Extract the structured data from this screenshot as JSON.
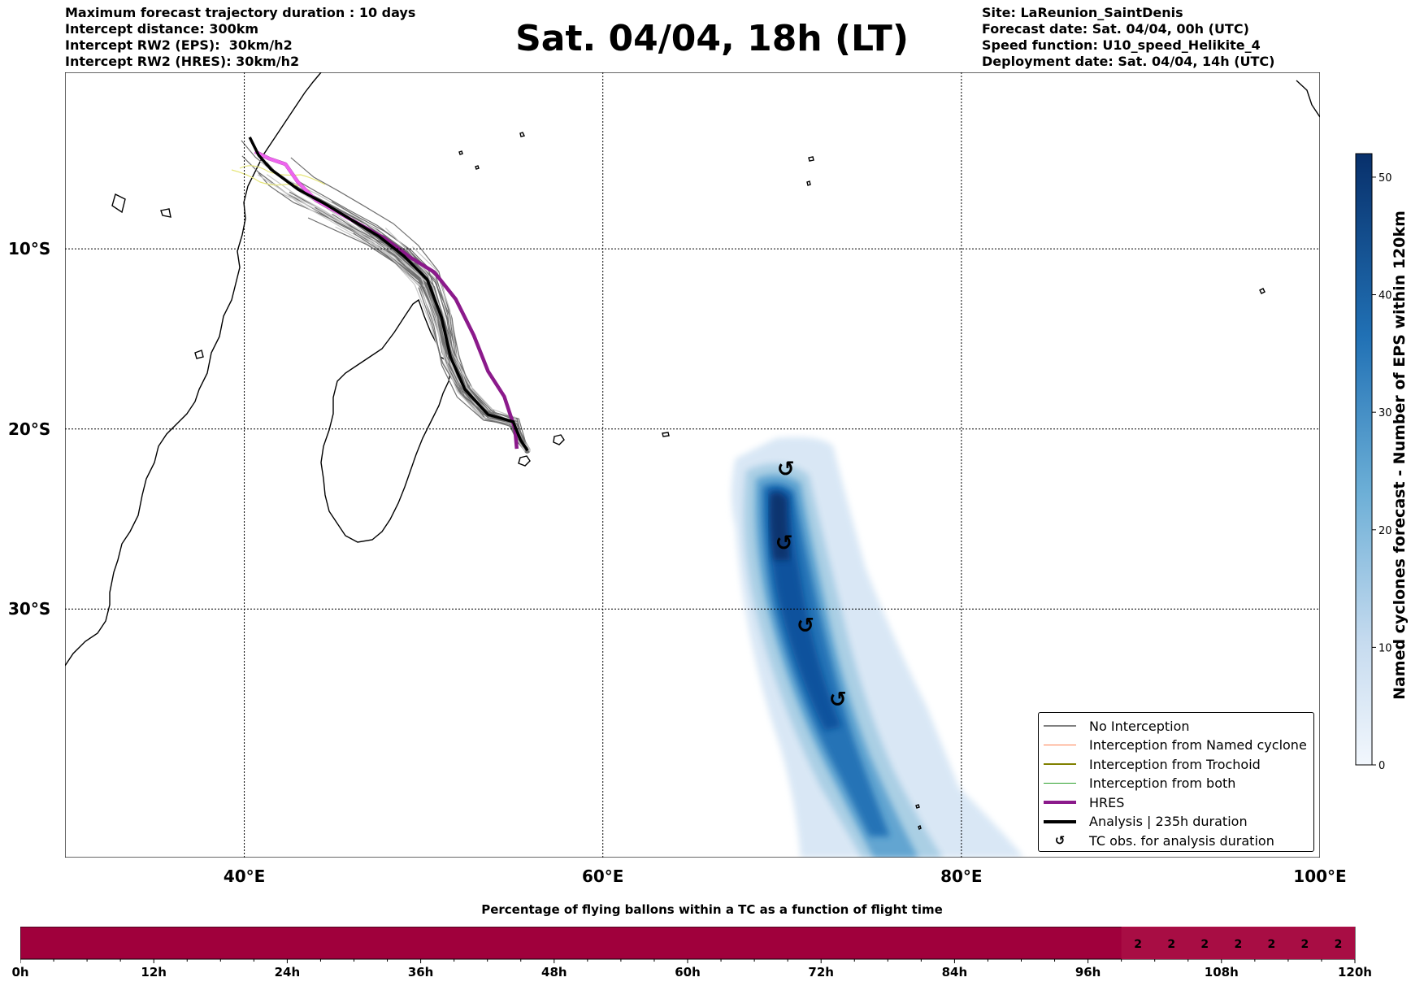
{
  "header": {
    "left_lines": [
      "Maximum forecast trajectory duration : 10 days",
      "Intercept distance: 300km",
      "Intercept RW2 (EPS):  30km/h2",
      "Intercept RW2 (HRES): 30km/h2"
    ],
    "title": "Sat. 04/04, 18h (LT)",
    "right_lines": [
      "Site: LaReunion_SaintDenis",
      "Forecast date: Sat. 04/04, 00h (UTC)",
      "Speed function: U10_speed_Helikite_4",
      "Deployment date: Sat. 04/04, 14h (UTC)"
    ]
  },
  "map": {
    "lon_range": [
      30,
      100
    ],
    "lat_range": [
      -43.8,
      -0.2
    ],
    "lon_ticks": [
      {
        "value": 40,
        "label": "40°E"
      },
      {
        "value": 60,
        "label": "60°E"
      },
      {
        "value": 80,
        "label": "80°E"
      },
      {
        "value": 100,
        "label": "100°E"
      }
    ],
    "lat_ticks": [
      {
        "value": -10,
        "label": "10°S"
      },
      {
        "value": -20,
        "label": "20°S"
      },
      {
        "value": -30,
        "label": "30°S"
      }
    ],
    "tc_symbol": "↺",
    "tc_observations": [
      {
        "lon": 70.2,
        "lat": -22.2
      },
      {
        "lon": 70.1,
        "lat": -26.3
      },
      {
        "lon": 71.3,
        "lat": -30.9
      },
      {
        "lon": 73.1,
        "lat": -35.0
      }
    ],
    "hres_track": [
      [
        55.2,
        -21.1
      ],
      [
        55.1,
        -20.0
      ],
      [
        54.5,
        -18.2
      ],
      [
        53.6,
        -16.8
      ],
      [
        52.8,
        -14.8
      ],
      [
        51.8,
        -12.8
      ],
      [
        50.6,
        -11.3
      ],
      [
        49.3,
        -10.5
      ],
      [
        47.8,
        -9.4
      ],
      [
        46.0,
        -8.4
      ],
      [
        44.0,
        -7.3
      ],
      [
        43.0,
        -6.3
      ],
      [
        42.3,
        -5.3
      ],
      [
        41.4,
        -5.0
      ],
      [
        40.6,
        -4.6
      ]
    ],
    "analysis_track": [
      [
        55.8,
        -21.2
      ],
      [
        55.4,
        -20.6
      ],
      [
        55.0,
        -19.6
      ],
      [
        53.6,
        -19.2
      ],
      [
        52.3,
        -17.8
      ],
      [
        51.5,
        -16.0
      ],
      [
        51.0,
        -13.8
      ],
      [
        50.2,
        -11.7
      ],
      [
        48.9,
        -10.4
      ],
      [
        47.5,
        -9.3
      ],
      [
        46.0,
        -8.4
      ],
      [
        44.5,
        -7.5
      ],
      [
        43.0,
        -6.7
      ],
      [
        41.5,
        -5.6
      ],
      [
        40.8,
        -4.8
      ],
      [
        40.3,
        -3.8
      ]
    ],
    "density_colors": [
      "#d7e6f5",
      "#a8cee4",
      "#5fa3d0",
      "#2171b5",
      "#08519c",
      "#08306b"
    ]
  },
  "legend": {
    "items": [
      {
        "label": "No Interception",
        "color": "#808080",
        "width": 1.2,
        "kind": "line"
      },
      {
        "label": "Interception from Named cyclone",
        "color": "#ff7f50",
        "width": 1.2,
        "kind": "line"
      },
      {
        "label": "Interception from Trochoid",
        "color": "#808000",
        "width": 1.2,
        "kind": "line"
      },
      {
        "label": "Interception from both",
        "color": "#2ca02c",
        "width": 1.2,
        "kind": "line"
      },
      {
        "label": "HRES",
        "color": "#8b1a8b",
        "width": 4,
        "kind": "line"
      },
      {
        "label": "Analysis | 235h duration",
        "color": "#000000",
        "width": 4,
        "kind": "line"
      },
      {
        "label": "TC obs. for analysis duration",
        "color": "#000000",
        "width": 0,
        "kind": "symbol"
      }
    ]
  },
  "colorbar": {
    "title": "Named cyclones forecast - Number of EPS within 120km",
    "range": [
      0,
      52
    ],
    "ticks": [
      "0",
      "10",
      "20",
      "30",
      "40",
      "50"
    ],
    "tick_values": [
      0,
      10,
      20,
      30,
      40,
      50
    ],
    "color_low": "#f2f7fd",
    "color_high": "#08306b"
  },
  "bottom_bar": {
    "title": "Percentage of flying ballons within a TC as a function of flight time",
    "tick_labels": [
      "0h",
      "12h",
      "24h",
      "36h",
      "48h",
      "60h",
      "72h",
      "84h",
      "96h",
      "108h",
      "120h"
    ],
    "cell_values": [
      "2",
      "2",
      "2",
      "2",
      "2",
      "2",
      "2"
    ],
    "cells_start_hour": 99,
    "base_color": "#a0003c",
    "cell_color": "#a80d44"
  }
}
